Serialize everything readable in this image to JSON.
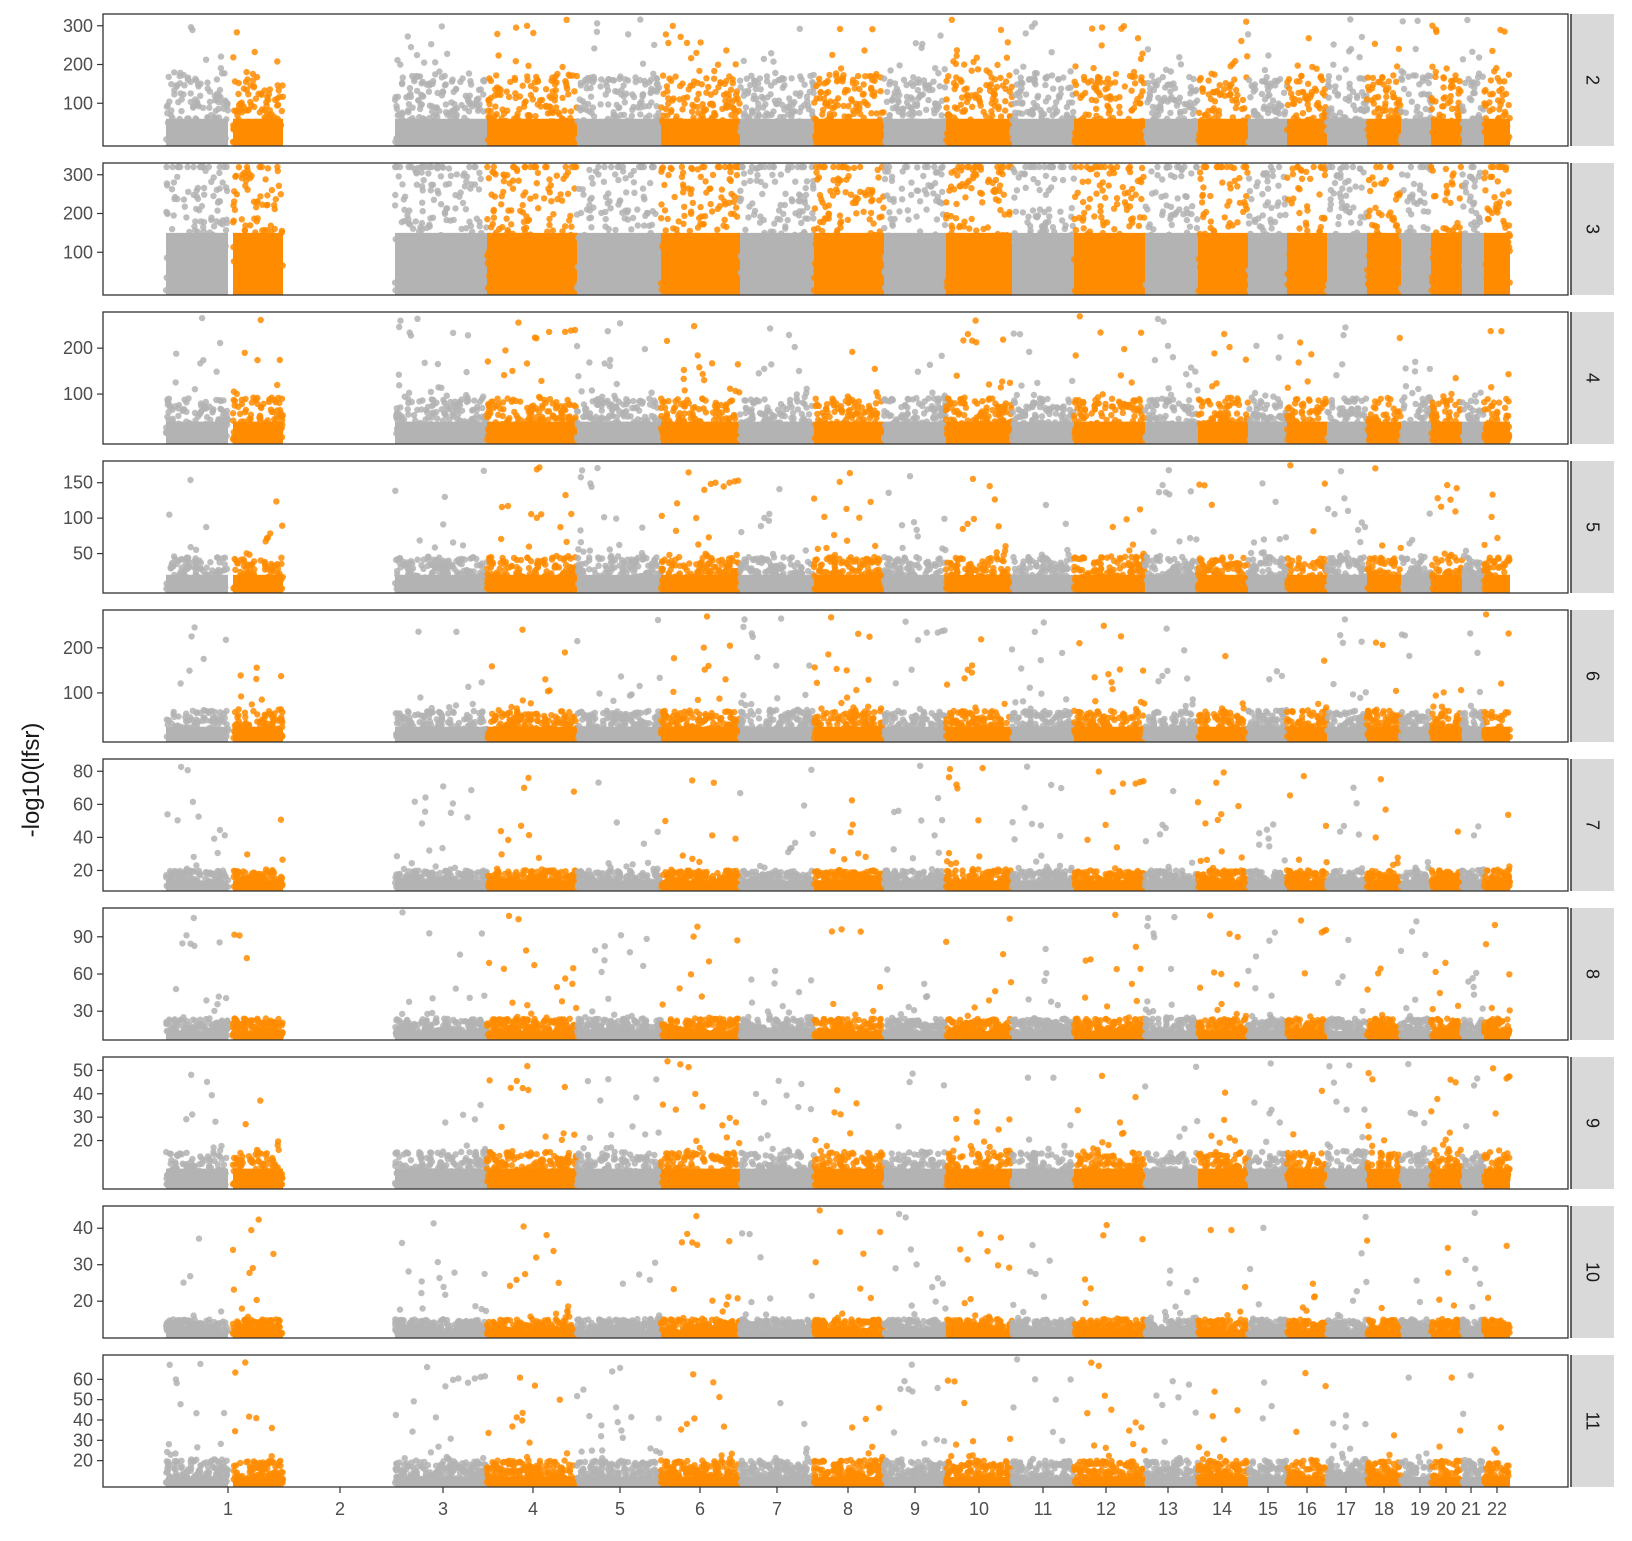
{
  "chart_data": {
    "type": "scatter",
    "subtype": "manhattan",
    "ylabel": "-log10(lfsr)",
    "xlabel": "",
    "colors": {
      "even": "#FF8C00",
      "odd": "#B3B3B3",
      "strip": "#D9D9D9",
      "panel_border": "#333333"
    },
    "chromosomes": [
      "1",
      "2",
      "3",
      "4",
      "5",
      "6",
      "7",
      "8",
      "9",
      "10",
      "11",
      "12",
      "13",
      "14",
      "15",
      "16",
      "17",
      "18",
      "19",
      "20",
      "21",
      "22"
    ],
    "panels": [
      {
        "label": "2",
        "ylim": [
          0,
          320
        ],
        "ticks": [
          100,
          200,
          300
        ],
        "base": [
          60,
          170
        ]
      },
      {
        "label": "3",
        "ylim": [
          0,
          320
        ],
        "ticks": [
          100,
          200,
          300
        ],
        "base": [
          150,
          320
        ]
      },
      {
        "label": "4",
        "ylim": [
          0,
          270
        ],
        "ticks": [
          100,
          200
        ],
        "base": [
          40,
          90
        ]
      },
      {
        "label": "5",
        "ylim": [
          0,
          175
        ],
        "ticks": [
          50,
          100,
          150
        ],
        "base": [
          20,
          45
        ]
      },
      {
        "label": "6",
        "ylim": [
          0,
          275
        ],
        "ticks": [
          100,
          200
        ],
        "base": [
          25,
          60
        ]
      },
      {
        "label": "7",
        "ylim": [
          10,
          85
        ],
        "ticks": [
          20,
          40,
          60,
          80
        ],
        "base": [
          14,
          20
        ]
      },
      {
        "label": "8",
        "ylim": [
          10,
          110
        ],
        "ticks": [
          30,
          60,
          90
        ],
        "base": [
          14,
          24
        ]
      },
      {
        "label": "9",
        "ylim": [
          1,
          54
        ],
        "ticks": [
          20,
          30,
          40,
          50
        ],
        "base": [
          8,
          15
        ]
      },
      {
        "label": "10",
        "ylim": [
          11,
          45
        ],
        "ticks": [
          20,
          30,
          40
        ],
        "base": [
          12,
          15
        ]
      },
      {
        "label": "11",
        "ylim": [
          9,
          70
        ],
        "ticks": [
          20,
          30,
          40,
          50,
          60
        ],
        "base": [
          12,
          20
        ]
      }
    ]
  }
}
